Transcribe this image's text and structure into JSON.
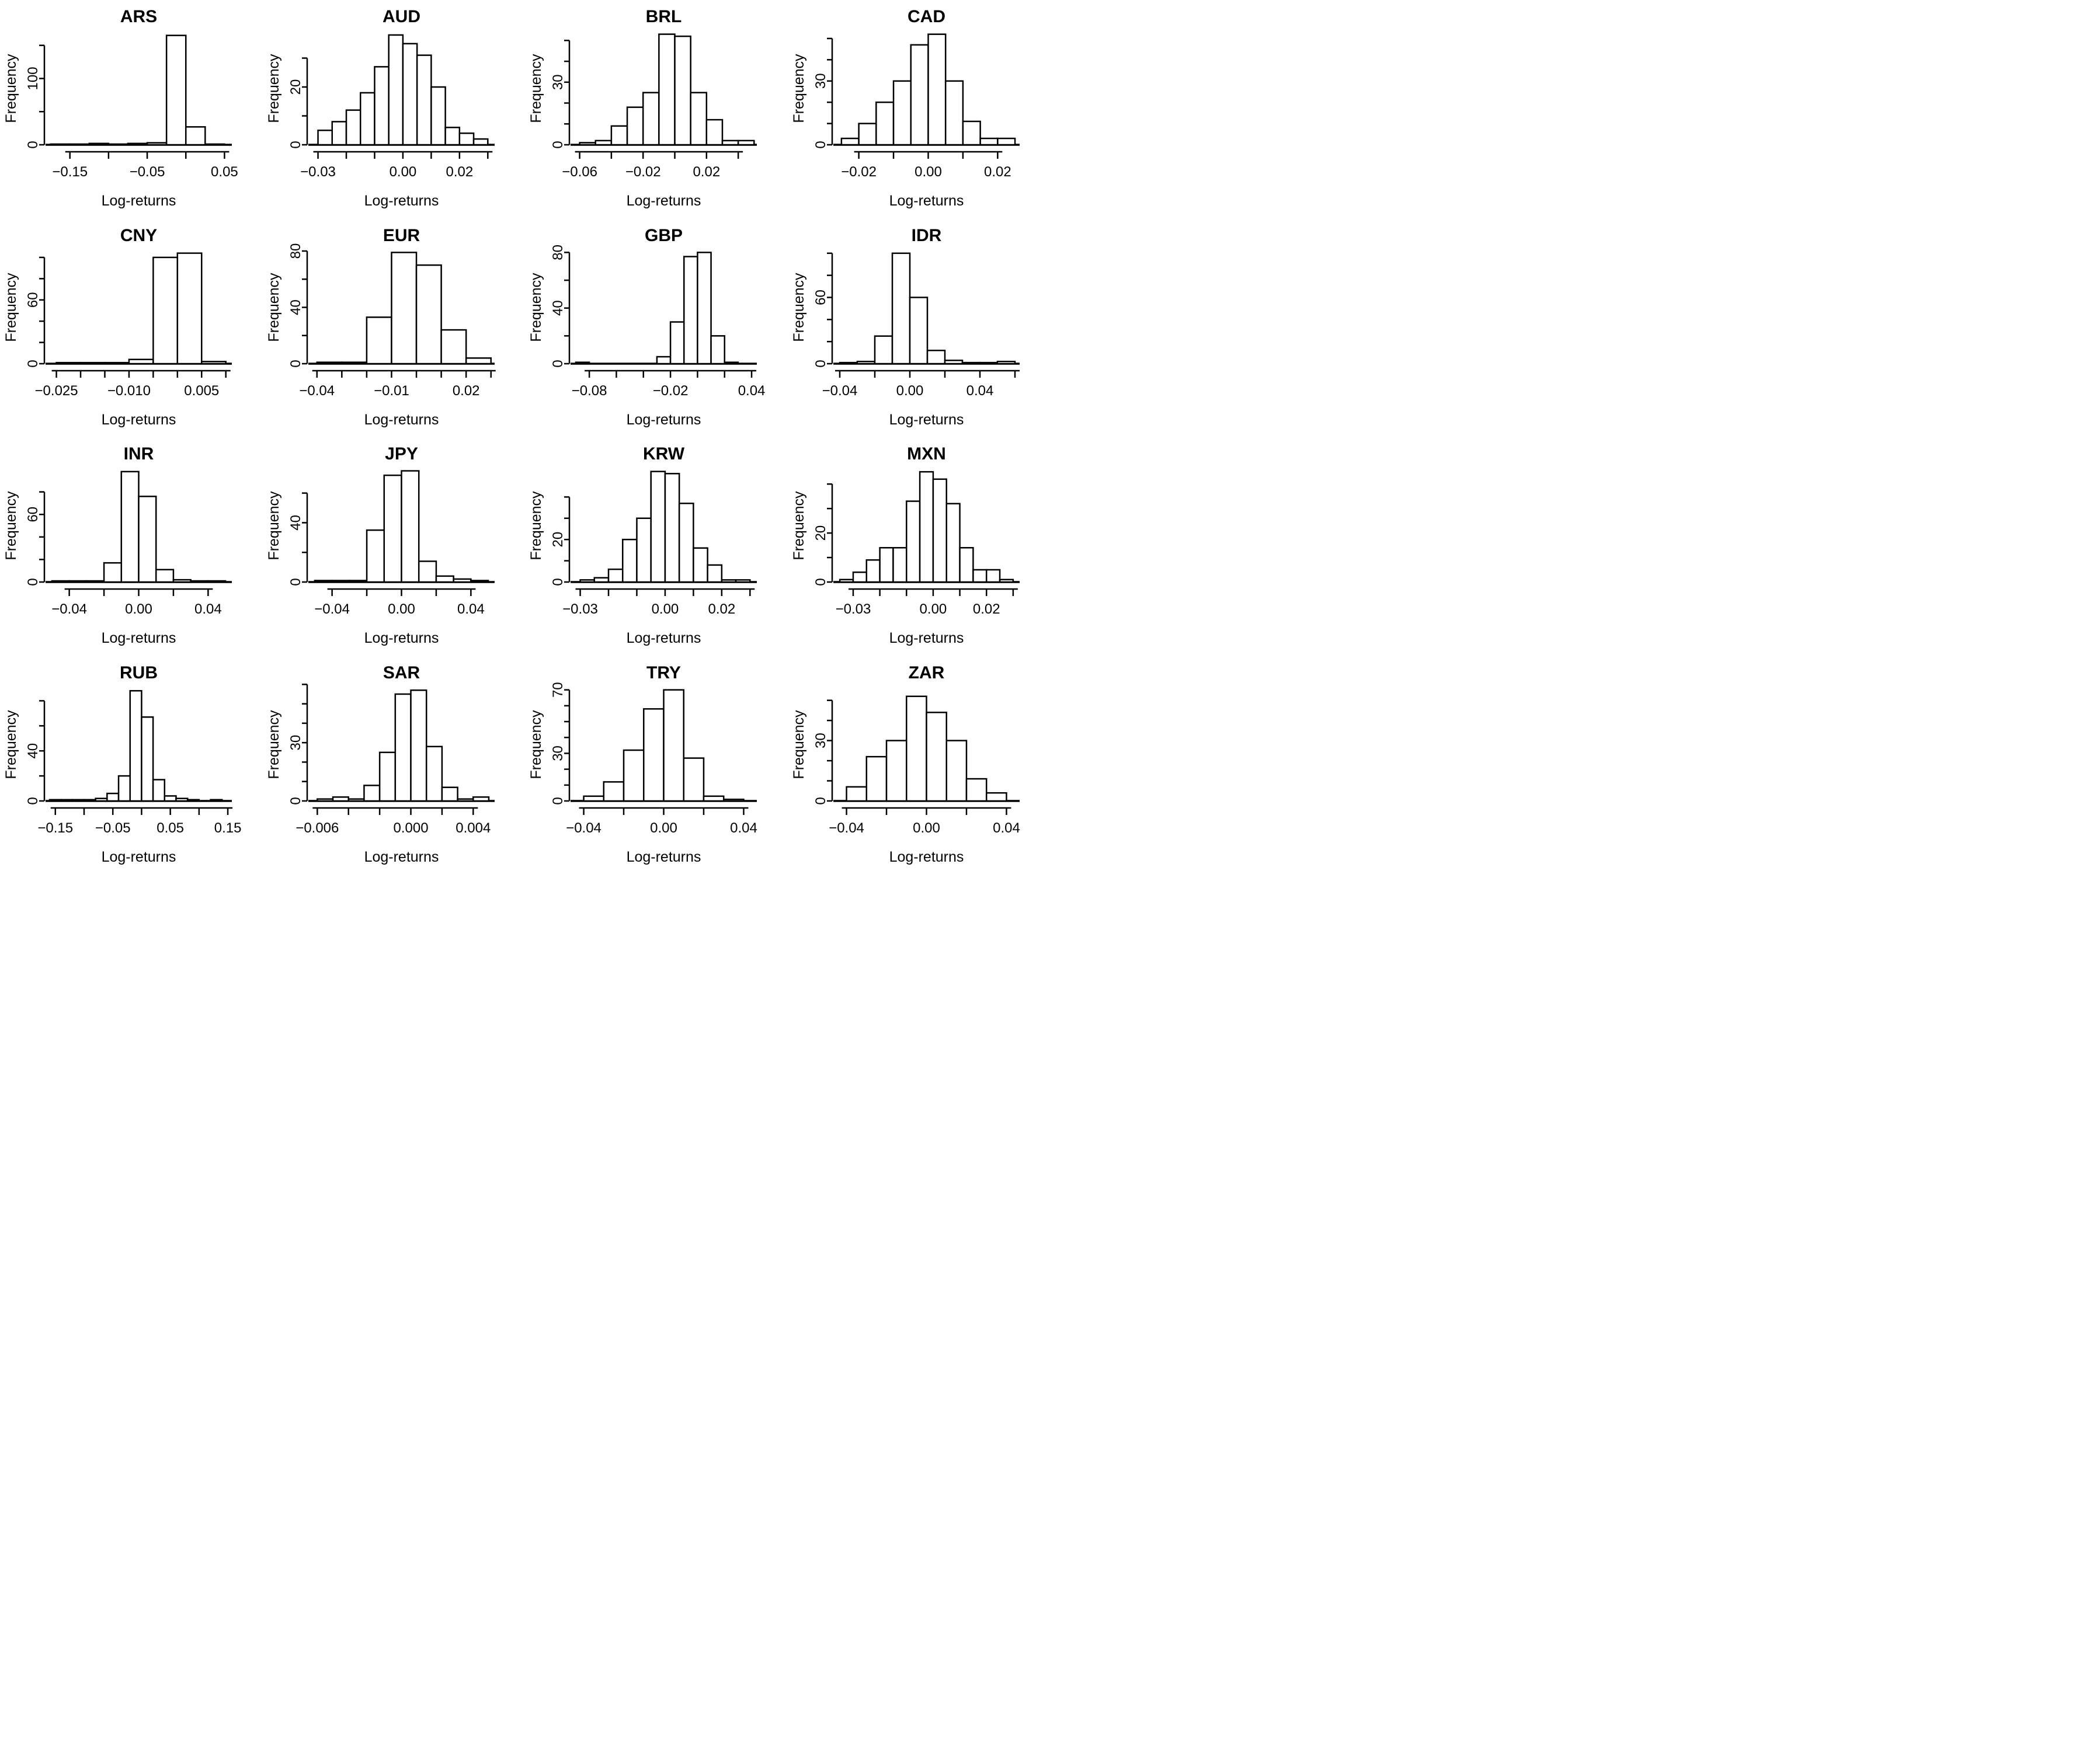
{
  "page": {
    "background_color": "#ffffff",
    "foreground_color": "#000000",
    "layout": "4x4 grid of histograms"
  },
  "chart_data": [
    {
      "type": "bar",
      "title": "ARS",
      "xlabel": "Log-returns",
      "ylabel": "Frequency",
      "bin_start": -0.175,
      "bin_width": 0.025,
      "counts": [
        1,
        1,
        2,
        1,
        2,
        3,
        165,
        27,
        1
      ],
      "x_min": -0.18,
      "x_max": 0.058,
      "x_ticks": [
        -0.15,
        -0.1,
        -0.05,
        0.0,
        0.05
      ],
      "x_tick_labels": [
        "−0.15",
        "",
        "−0.05",
        "",
        "0.05"
      ],
      "y_ticks": [
        0,
        50,
        100,
        150
      ],
      "y_tick_labels": [
        "0",
        "",
        "100",
        ""
      ],
      "y_max": 170,
      "grid": false,
      "legend": false
    },
    {
      "type": "bar",
      "title": "AUD",
      "xlabel": "Log-returns",
      "ylabel": "Frequency",
      "bin_start": -0.03,
      "bin_width": 0.005,
      "counts": [
        5,
        8,
        12,
        18,
        27,
        38,
        35,
        31,
        20,
        6,
        4,
        2
      ],
      "x_min": -0.033,
      "x_max": 0.032,
      "x_ticks": [
        -0.03,
        -0.02,
        -0.01,
        0.0,
        0.01,
        0.02,
        0.03
      ],
      "x_tick_labels": [
        "−0.03",
        "",
        "",
        "0.00",
        "",
        "0.02",
        ""
      ],
      "y_ticks": [
        0,
        10,
        20,
        30
      ],
      "y_tick_labels": [
        "0",
        "",
        "20",
        ""
      ],
      "y_max": 39,
      "grid": false,
      "legend": false
    },
    {
      "type": "bar",
      "title": "BRL",
      "xlabel": "Log-returns",
      "ylabel": "Frequency",
      "bin_start": -0.06,
      "bin_width": 0.01,
      "counts": [
        1,
        2,
        9,
        18,
        25,
        53,
        52,
        25,
        12,
        2,
        2
      ],
      "x_min": -0.065,
      "x_max": 0.051,
      "x_ticks": [
        -0.06,
        -0.04,
        -0.02,
        0.0,
        0.02,
        0.04
      ],
      "x_tick_labels": [
        "−0.06",
        "",
        "−0.02",
        "",
        "0.02",
        ""
      ],
      "y_ticks": [
        0,
        10,
        20,
        30,
        40,
        50
      ],
      "y_tick_labels": [
        "0",
        "",
        "",
        "30",
        "",
        ""
      ],
      "y_max": 54,
      "grid": false,
      "legend": false
    },
    {
      "type": "bar",
      "title": "CAD",
      "xlabel": "Log-returns",
      "ylabel": "Frequency",
      "bin_start": -0.025,
      "bin_width": 0.005,
      "counts": [
        3,
        10,
        20,
        30,
        47,
        52,
        30,
        11,
        3,
        3
      ],
      "x_min": -0.027,
      "x_max": 0.026,
      "x_ticks": [
        -0.02,
        -0.01,
        0.0,
        0.01,
        0.02
      ],
      "x_tick_labels": [
        "−0.02",
        "",
        "0.00",
        "",
        "0.02"
      ],
      "y_ticks": [
        0,
        10,
        20,
        30,
        40,
        50
      ],
      "y_tick_labels": [
        "0",
        "",
        "",
        "30",
        "",
        ""
      ],
      "y_max": 53,
      "grid": false,
      "legend": false
    },
    {
      "type": "bar",
      "title": "CNY",
      "xlabel": "Log-returns",
      "ylabel": "Frequency",
      "bin_start": -0.025,
      "bin_width": 0.005,
      "counts": [
        1,
        1,
        1,
        4,
        100,
        104,
        2
      ],
      "x_min": -0.027,
      "x_max": 0.011,
      "x_ticks": [
        -0.025,
        -0.02,
        -0.015,
        -0.01,
        -0.005,
        0.0,
        0.005,
        0.01
      ],
      "x_tick_labels": [
        "−0.025",
        "",
        "",
        "−0.010",
        "",
        "",
        "0.005",
        ""
      ],
      "y_ticks": [
        0,
        20,
        40,
        60,
        80,
        100
      ],
      "y_tick_labels": [
        "0",
        "",
        "",
        "60",
        "",
        ""
      ],
      "y_max": 106,
      "grid": false,
      "legend": false
    },
    {
      "type": "bar",
      "title": "EUR",
      "xlabel": "Log-returns",
      "ylabel": "Frequency",
      "bin_start": -0.04,
      "bin_width": 0.01,
      "counts": [
        1,
        1,
        33,
        79,
        70,
        24,
        4
      ],
      "x_min": -0.043,
      "x_max": 0.031,
      "x_ticks": [
        -0.04,
        -0.03,
        -0.02,
        -0.01,
        0.0,
        0.01,
        0.02,
        0.03
      ],
      "x_tick_labels": [
        "−0.04",
        "",
        "",
        "−0.01",
        "",
        "",
        "0.02",
        ""
      ],
      "y_ticks": [
        0,
        20,
        40,
        60,
        80
      ],
      "y_tick_labels": [
        "0",
        "",
        "40",
        "",
        "80"
      ],
      "y_max": 80,
      "grid": false,
      "legend": false
    },
    {
      "type": "bar",
      "title": "GBP",
      "xlabel": "Log-returns",
      "ylabel": "Frequency",
      "bin_start": -0.09,
      "bin_width": 0.01,
      "counts": [
        1,
        0,
        0,
        0,
        0,
        0,
        5,
        30,
        77,
        80,
        20,
        1
      ],
      "x_min": -0.093,
      "x_max": 0.043,
      "x_ticks": [
        -0.08,
        -0.06,
        -0.04,
        -0.02,
        0.0,
        0.02,
        0.04
      ],
      "x_tick_labels": [
        "−0.08",
        "",
        "",
        "−0.02",
        "",
        "",
        "0.04"
      ],
      "y_ticks": [
        0,
        20,
        40,
        60,
        80
      ],
      "y_tick_labels": [
        "0",
        "",
        "40",
        "",
        "80"
      ],
      "y_max": 81,
      "grid": false,
      "legend": false
    },
    {
      "type": "bar",
      "title": "IDR",
      "xlabel": "Log-returns",
      "ylabel": "Frequency",
      "bin_start": -0.04,
      "bin_width": 0.01,
      "counts": [
        1,
        2,
        25,
        100,
        60,
        12,
        3,
        1,
        1,
        2
      ],
      "x_min": -0.043,
      "x_max": 0.062,
      "x_ticks": [
        -0.04,
        -0.02,
        0.0,
        0.02,
        0.04,
        0.06
      ],
      "x_tick_labels": [
        "−0.04",
        "",
        "0.00",
        "",
        "0.04",
        ""
      ],
      "y_ticks": [
        0,
        20,
        40,
        60,
        80,
        100
      ],
      "y_tick_labels": [
        "0",
        "",
        "",
        "60",
        "",
        ""
      ],
      "y_max": 102,
      "grid": false,
      "legend": false
    },
    {
      "type": "bar",
      "title": "INR",
      "xlabel": "Log-returns",
      "ylabel": "Frequency",
      "bin_start": -0.05,
      "bin_width": 0.01,
      "counts": [
        1,
        1,
        1,
        17,
        98,
        76,
        11,
        2,
        1,
        1
      ],
      "x_min": -0.053,
      "x_max": 0.053,
      "x_ticks": [
        -0.04,
        -0.02,
        0.0,
        0.02,
        0.04
      ],
      "x_tick_labels": [
        "−0.04",
        "",
        "0.00",
        "",
        "0.04"
      ],
      "y_ticks": [
        0,
        20,
        40,
        60,
        80
      ],
      "y_tick_labels": [
        "0",
        "",
        "",
        "60",
        ""
      ],
      "y_max": 100,
      "grid": false,
      "legend": false
    },
    {
      "type": "bar",
      "title": "JPY",
      "xlabel": "Log-returns",
      "ylabel": "Frequency",
      "bin_start": -0.05,
      "bin_width": 0.01,
      "counts": [
        1,
        1,
        1,
        35,
        72,
        75,
        14,
        4,
        2,
        1
      ],
      "x_min": -0.053,
      "x_max": 0.053,
      "x_ticks": [
        -0.04,
        -0.02,
        0.0,
        0.02,
        0.04
      ],
      "x_tick_labels": [
        "−0.04",
        "",
        "0.00",
        "",
        "0.04"
      ],
      "y_ticks": [
        0,
        20,
        40,
        60
      ],
      "y_tick_labels": [
        "0",
        "",
        "40",
        ""
      ],
      "y_max": 76,
      "grid": false,
      "legend": false
    },
    {
      "type": "bar",
      "title": "KRW",
      "xlabel": "Log-returns",
      "ylabel": "Frequency",
      "bin_start": -0.03,
      "bin_width": 0.005,
      "counts": [
        1,
        2,
        6,
        20,
        30,
        52,
        51,
        37,
        16,
        8,
        1,
        1
      ],
      "x_min": -0.033,
      "x_max": 0.032,
      "x_ticks": [
        -0.03,
        -0.02,
        -0.01,
        0.0,
        0.01,
        0.02,
        0.03
      ],
      "x_tick_labels": [
        "−0.03",
        "",
        "",
        "0.00",
        "",
        "0.02",
        ""
      ],
      "y_ticks": [
        0,
        10,
        20,
        30,
        40
      ],
      "y_tick_labels": [
        "0",
        "",
        "20",
        "",
        ""
      ],
      "y_max": 53,
      "grid": false,
      "legend": false
    },
    {
      "type": "bar",
      "title": "MXN",
      "xlabel": "Log-returns",
      "ylabel": "Frequency",
      "bin_start": -0.035,
      "bin_width": 0.005,
      "counts": [
        1,
        4,
        9,
        14,
        14,
        33,
        45,
        42,
        32,
        14,
        5,
        5,
        1
      ],
      "x_min": -0.037,
      "x_max": 0.032,
      "x_ticks": [
        -0.03,
        -0.02,
        -0.01,
        0.0,
        0.01,
        0.02,
        0.03
      ],
      "x_tick_labels": [
        "−0.03",
        "",
        "",
        "0.00",
        "",
        "0.02",
        ""
      ],
      "y_ticks": [
        0,
        10,
        20,
        30,
        40
      ],
      "y_tick_labels": [
        "0",
        "",
        "20",
        "",
        ""
      ],
      "y_max": 46,
      "grid": false,
      "legend": false
    },
    {
      "type": "bar",
      "title": "RUB",
      "xlabel": "Log-returns",
      "ylabel": "Frequency",
      "bin_start": -0.16,
      "bin_width": 0.02,
      "counts": [
        1,
        1,
        1,
        1,
        2,
        6,
        20,
        88,
        67,
        17,
        4,
        2,
        1,
        0,
        1
      ],
      "x_min": -0.165,
      "x_max": 0.155,
      "x_ticks": [
        -0.15,
        -0.1,
        -0.05,
        0.0,
        0.05,
        0.1,
        0.15
      ],
      "x_tick_labels": [
        "−0.15",
        "",
        "−0.05",
        "",
        "0.05",
        "",
        "0.15"
      ],
      "y_ticks": [
        0,
        20,
        40,
        60,
        80
      ],
      "y_tick_labels": [
        "0",
        "",
        "40",
        "",
        ""
      ],
      "y_max": 90,
      "grid": false,
      "legend": false
    },
    {
      "type": "bar",
      "title": "SAR",
      "xlabel": "Log-returns",
      "ylabel": "Frequency",
      "bin_start": -0.006,
      "bin_width": 0.001,
      "counts": [
        1,
        2,
        1,
        8,
        25,
        55,
        57,
        28,
        7,
        1,
        2
      ],
      "x_min": -0.0065,
      "x_max": 0.0053,
      "x_ticks": [
        -0.006,
        -0.004,
        -0.002,
        0.0,
        0.002,
        0.004
      ],
      "x_tick_labels": [
        "−0.006",
        "",
        "",
        "0.000",
        "",
        "0.004"
      ],
      "y_ticks": [
        0,
        10,
        20,
        30,
        40,
        50,
        60
      ],
      "y_tick_labels": [
        "0",
        "",
        "",
        "30",
        "",
        "",
        ""
      ],
      "y_max": 58,
      "grid": false,
      "legend": false
    },
    {
      "type": "bar",
      "title": "TRY",
      "xlabel": "Log-returns",
      "ylabel": "Frequency",
      "bin_start": -0.04,
      "bin_width": 0.01,
      "counts": [
        3,
        12,
        32,
        58,
        70,
        27,
        3,
        1
      ],
      "x_min": -0.046,
      "x_max": 0.046,
      "x_ticks": [
        -0.04,
        -0.02,
        0.0,
        0.02,
        0.04
      ],
      "x_tick_labels": [
        "−0.04",
        "",
        "0.00",
        "",
        "0.04"
      ],
      "y_ticks": [
        0,
        10,
        20,
        30,
        40,
        50,
        60,
        70
      ],
      "y_tick_labels": [
        "0",
        "",
        "",
        "30",
        "",
        "",
        "",
        "70"
      ],
      "y_max": 71,
      "grid": false,
      "legend": false
    },
    {
      "type": "bar",
      "title": "ZAR",
      "xlabel": "Log-returns",
      "ylabel": "Frequency",
      "bin_start": -0.04,
      "bin_width": 0.01,
      "counts": [
        7,
        22,
        30,
        52,
        44,
        30,
        11,
        4
      ],
      "x_min": -0.046,
      "x_max": 0.046,
      "x_ticks": [
        -0.04,
        -0.02,
        0.0,
        0.02,
        0.04
      ],
      "x_tick_labels": [
        "−0.04",
        "",
        "0.00",
        "",
        "0.04"
      ],
      "y_ticks": [
        0,
        10,
        20,
        30,
        40,
        50
      ],
      "y_tick_labels": [
        "0",
        "",
        "",
        "30",
        "",
        ""
      ],
      "y_max": 56,
      "grid": false,
      "legend": false
    }
  ]
}
